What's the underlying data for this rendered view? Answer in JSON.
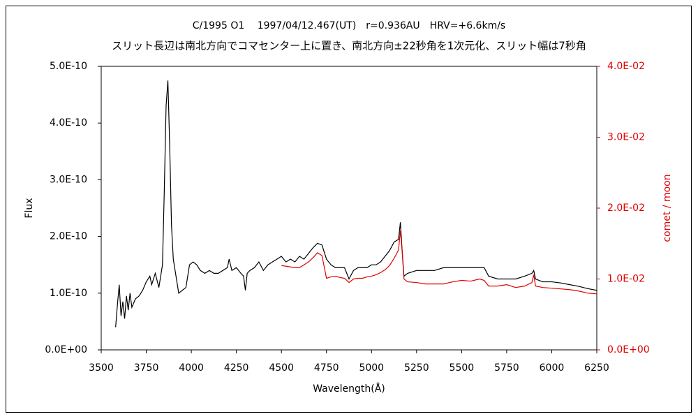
{
  "chart_data": {
    "type": "line",
    "title": "C/1995 O1　 1997/04/12.467(UT)　r=0.936AU　HRV=+6.6km/s",
    "subtitle": "スリット長辺は南北方向でコマセンター上に置き、南北方向±22秒角を1次元化、スリット幅は7秒角",
    "x_label": "Wavelength(Å)",
    "y_label": "Flux",
    "y2_label": "comet / moon",
    "xlim": [
      3500,
      6250
    ],
    "xticks": [
      3500,
      3750,
      4000,
      4250,
      4500,
      4750,
      5000,
      5250,
      5500,
      5750,
      6000,
      6250
    ],
    "ylim": [
      0,
      5e-10
    ],
    "yticks": [
      {
        "value": 0,
        "label": "0.0E+00"
      },
      {
        "value": 1e-10,
        "label": "1.0E-10"
      },
      {
        "value": 2e-10,
        "label": "2.0E-10"
      },
      {
        "value": 3e-10,
        "label": "3.0E-10"
      },
      {
        "value": 4e-10,
        "label": "4.0E-10"
      },
      {
        "value": 5e-10,
        "label": "5.0E-10"
      }
    ],
    "y2lim": [
      0,
      0.04
    ],
    "y2ticks": [
      {
        "value": 0,
        "label": "0.0E+00"
      },
      {
        "value": 0.01,
        "label": "1.0E-02"
      },
      {
        "value": 0.02,
        "label": "2.0E-02"
      },
      {
        "value": 0.03,
        "label": "3.0E-02"
      },
      {
        "value": 0.04,
        "label": "4.0E-02"
      }
    ],
    "x": [
      3580,
      3590,
      3600,
      3610,
      3620,
      3630,
      3640,
      3650,
      3660,
      3670,
      3690,
      3710,
      3730,
      3750,
      3770,
      3780,
      3800,
      3820,
      3840,
      3850,
      3860,
      3870,
      3880,
      3890,
      3900,
      3920,
      3930,
      3950,
      3970,
      3990,
      4010,
      4030,
      4050,
      4075,
      4100,
      4125,
      4150,
      4175,
      4200,
      4210,
      4225,
      4250,
      4275,
      4290,
      4300,
      4310,
      4325,
      4350,
      4375,
      4400,
      4425,
      4450,
      4475,
      4500,
      4525,
      4550,
      4575,
      4600,
      4625,
      4650,
      4675,
      4700,
      4725,
      4750,
      4775,
      4800,
      4825,
      4850,
      4875,
      4900,
      4925,
      4950,
      4975,
      5000,
      5025,
      5050,
      5075,
      5100,
      5125,
      5150,
      5160,
      5170,
      5180,
      5200,
      5250,
      5300,
      5350,
      5400,
      5450,
      5500,
      5550,
      5600,
      5625,
      5650,
      5700,
      5750,
      5800,
      5850,
      5890,
      5900,
      5910,
      5950,
      6000,
      6050,
      6100,
      6150,
      6200,
      6250
    ],
    "series": [
      {
        "color": "#000000",
        "values": [
          4e-11,
          8e-11,
          1.15e-10,
          6e-11,
          8.5e-11,
          5.5e-11,
          9.5e-11,
          7e-11,
          1e-10,
          7.5e-11,
          9e-11,
          9.5e-11,
          1.05e-10,
          1.2e-10,
          1.3e-10,
          1.15e-10,
          1.35e-10,
          1.1e-10,
          1.5e-10,
          2.8e-10,
          4.3e-10,
          4.75e-10,
          3.6e-10,
          2.2e-10,
          1.6e-10,
          1.2e-10,
          1e-10,
          1.05e-10,
          1.1e-10,
          1.5e-10,
          1.55e-10,
          1.5e-10,
          1.4e-10,
          1.35e-10,
          1.4e-10,
          1.35e-10,
          1.35e-10,
          1.4e-10,
          1.45e-10,
          1.6e-10,
          1.4e-10,
          1.45e-10,
          1.35e-10,
          1.3e-10,
          1.05e-10,
          1.35e-10,
          1.4e-10,
          1.45e-10,
          1.55e-10,
          1.4e-10,
          1.5e-10,
          1.55e-10,
          1.6e-10,
          1.65e-10,
          1.55e-10,
          1.6e-10,
          1.55e-10,
          1.65e-10,
          1.6e-10,
          1.7e-10,
          1.8e-10,
          1.88e-10,
          1.85e-10,
          1.6e-10,
          1.5e-10,
          1.45e-10,
          1.45e-10,
          1.45e-10,
          1.25e-10,
          1.4e-10,
          1.45e-10,
          1.45e-10,
          1.45e-10,
          1.5e-10,
          1.5e-10,
          1.55e-10,
          1.65e-10,
          1.75e-10,
          1.9e-10,
          1.95e-10,
          2.25e-10,
          1.75e-10,
          1.3e-10,
          1.35e-10,
          1.4e-10,
          1.4e-10,
          1.4e-10,
          1.45e-10,
          1.45e-10,
          1.45e-10,
          1.45e-10,
          1.45e-10,
          1.45e-10,
          1.3e-10,
          1.25e-10,
          1.25e-10,
          1.25e-10,
          1.3e-10,
          1.35e-10,
          1.4e-10,
          1.25e-10,
          1.2e-10,
          1.2e-10,
          1.18e-10,
          1.15e-10,
          1.12e-10,
          1.08e-10,
          1.05e-10
        ]
      },
      {
        "color": "#e00000",
        "axis": "y2",
        "values": [
          null,
          null,
          null,
          null,
          null,
          null,
          null,
          null,
          null,
          null,
          null,
          null,
          null,
          null,
          null,
          null,
          null,
          null,
          null,
          null,
          null,
          null,
          null,
          null,
          null,
          null,
          null,
          null,
          null,
          null,
          null,
          null,
          null,
          null,
          null,
          null,
          null,
          null,
          null,
          null,
          null,
          null,
          null,
          null,
          null,
          null,
          null,
          null,
          null,
          null,
          null,
          null,
          null,
          0.0119,
          0.0118,
          0.0117,
          0.0116,
          0.0116,
          0.012,
          0.0124,
          0.013,
          0.0137,
          0.0133,
          0.0101,
          0.0103,
          0.0104,
          0.0102,
          0.0101,
          0.0095,
          0.01,
          0.0101,
          0.0101,
          0.0103,
          0.0104,
          0.0106,
          0.0109,
          0.0113,
          0.0119,
          0.0129,
          0.0141,
          0.0168,
          0.0139,
          0.01,
          0.0096,
          0.0095,
          0.0093,
          0.0093,
          0.0093,
          0.0096,
          0.0098,
          0.0097,
          0.01,
          0.0098,
          0.009,
          0.009,
          0.0092,
          0.0088,
          0.009,
          0.0095,
          0.0106,
          0.009,
          0.0088,
          0.0087,
          0.0086,
          0.0085,
          0.0083,
          0.008,
          0.0079
        ]
      }
    ]
  }
}
